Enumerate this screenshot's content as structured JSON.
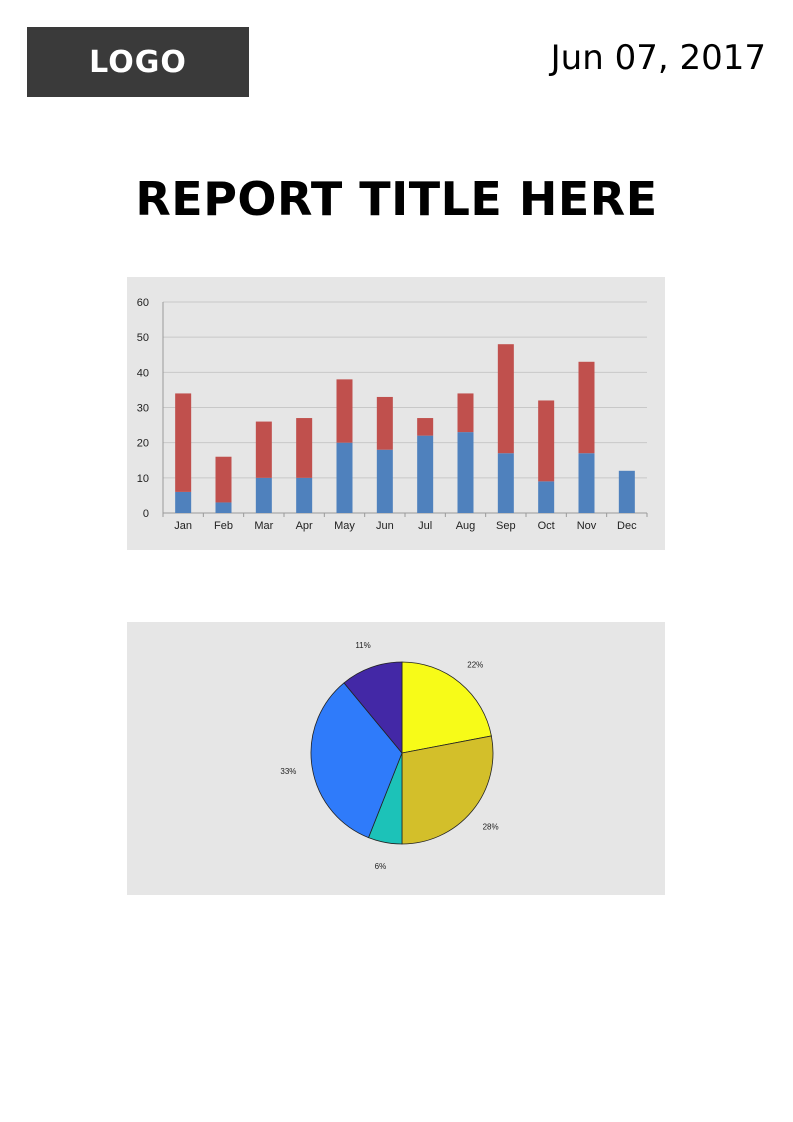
{
  "header": {
    "logo_text": "LOGO",
    "date": "Jun 07, 2017"
  },
  "report": {
    "title": "REPORT TITLE HERE"
  },
  "chart_data": [
    {
      "type": "bar",
      "stacked": true,
      "categories": [
        "Jan",
        "Feb",
        "Mar",
        "Apr",
        "May",
        "Jun",
        "Jul",
        "Aug",
        "Sep",
        "Oct",
        "Nov",
        "Dec"
      ],
      "series": [
        {
          "values": [
            6,
            3,
            10,
            10,
            20,
            18,
            22,
            23,
            17,
            9,
            17,
            12
          ],
          "color": "#4f81bd"
        },
        {
          "values": [
            28,
            13,
            16,
            17,
            18,
            15,
            5,
            11,
            31,
            23,
            26,
            0
          ],
          "color": "#c0504d"
        }
      ],
      "ylim": [
        0,
        60
      ],
      "yticks": [
        0,
        10,
        20,
        30,
        40,
        50,
        60
      ],
      "grid": true,
      "legend": "none"
    },
    {
      "type": "pie",
      "slices": [
        {
          "label": "22%",
          "value": 22,
          "color": "#f7fb18"
        },
        {
          "label": "28%",
          "value": 28,
          "color": "#d3bf2a"
        },
        {
          "label": "6%",
          "value": 6,
          "color": "#1cc2b8"
        },
        {
          "label": "33%",
          "value": 33,
          "color": "#2f7bfa"
        },
        {
          "label": "11%",
          "value": 11,
          "color": "#4328a6"
        }
      ],
      "start": "top",
      "direction": "clockwise",
      "legend": "none"
    }
  ]
}
